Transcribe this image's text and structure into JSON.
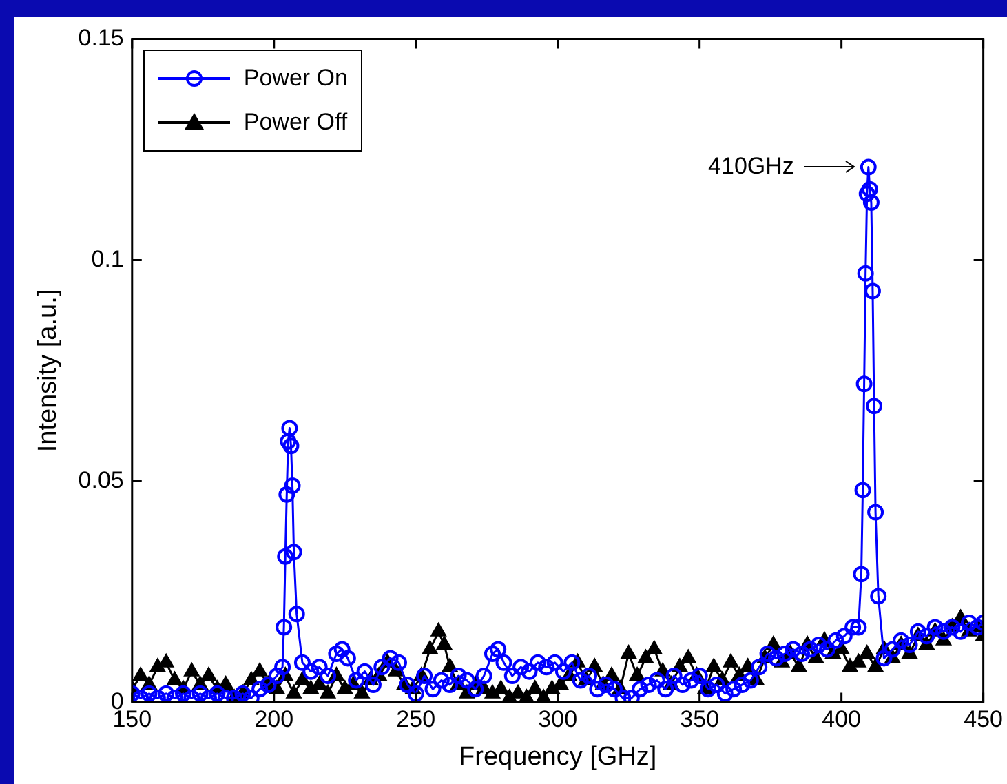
{
  "chart_data": {
    "type": "line",
    "xlabel": "Frequency [GHz]",
    "ylabel": "Intensity [a.u.]",
    "xlim": [
      150,
      450
    ],
    "xticks": [
      150,
      200,
      250,
      300,
      350,
      400,
      450
    ],
    "ylim": [
      0,
      0.15
    ],
    "yticks": [
      0,
      0.05,
      {
        "value": 0.1,
        "label": "0.1"
      },
      0.15
    ],
    "grid": false,
    "legend": "top left",
    "annotations": [
      "410GHz"
    ],
    "series": [
      {
        "name": "Power On",
        "color": "#0000ff",
        "marker": "circle",
        "x": [
          150,
          153,
          156,
          159,
          162,
          165,
          168,
          171,
          174,
          177,
          180,
          183,
          186,
          189,
          192,
          195,
          198,
          201,
          203,
          203.5,
          204,
          204.5,
          205,
          205.5,
          206,
          206.5,
          207,
          208,
          210,
          213,
          216,
          219,
          222,
          224,
          226,
          229,
          232,
          235,
          238,
          241,
          244,
          247,
          250,
          253,
          256,
          259,
          262,
          265,
          268,
          271,
          274,
          277,
          279,
          281,
          284,
          287,
          290,
          293,
          296,
          299,
          302,
          305,
          308,
          311,
          314,
          317,
          320,
          323,
          326,
          329,
          332,
          335,
          338,
          341,
          344,
          347,
          350,
          353,
          356,
          359,
          362,
          365,
          368,
          371,
          374,
          377,
          380,
          383,
          386,
          389,
          392,
          395,
          398,
          401,
          404,
          406,
          407,
          407.5,
          408,
          408.5,
          409,
          409.5,
          410,
          410.5,
          411,
          411.5,
          412,
          413,
          415,
          418,
          421,
          424,
          427,
          430,
          433,
          436,
          439,
          442,
          445,
          448,
          450
        ],
        "values": [
          0.002,
          0.001,
          0.002,
          0.001,
          0.002,
          0.001,
          0.002,
          0.001,
          0.002,
          0.001,
          0.002,
          0.001,
          0.001,
          0.002,
          0.001,
          0.003,
          0.004,
          0.006,
          0.008,
          0.017,
          0.033,
          0.047,
          0.059,
          0.062,
          0.058,
          0.049,
          0.034,
          0.02,
          0.009,
          0.007,
          0.008,
          0.006,
          0.011,
          0.012,
          0.01,
          0.005,
          0.007,
          0.004,
          0.008,
          0.01,
          0.009,
          0.004,
          0.002,
          0.006,
          0.003,
          0.005,
          0.004,
          0.006,
          0.005,
          0.003,
          0.006,
          0.011,
          0.012,
          0.009,
          0.006,
          0.008,
          0.007,
          0.009,
          0.008,
          0.009,
          0.007,
          0.009,
          0.005,
          0.006,
          0.003,
          0.004,
          0.003,
          0.001,
          0.001,
          0.003,
          0.004,
          0.005,
          0.003,
          0.006,
          0.004,
          0.005,
          0.006,
          0.003,
          0.004,
          0.002,
          0.003,
          0.004,
          0.005,
          0.008,
          0.011,
          0.01,
          0.011,
          0.012,
          0.011,
          0.012,
          0.013,
          0.012,
          0.014,
          0.015,
          0.017,
          0.017,
          0.029,
          0.048,
          0.072,
          0.097,
          0.115,
          0.121,
          0.116,
          0.113,
          0.093,
          0.067,
          0.043,
          0.024,
          0.01,
          0.012,
          0.014,
          0.013,
          0.016,
          0.015,
          0.017,
          0.016,
          0.017,
          0.016,
          0.018,
          0.017,
          0.018
        ]
      },
      {
        "name": "Power Off",
        "color": "#000000",
        "marker": "triangle",
        "x": [
          150,
          153,
          156,
          159,
          162,
          165,
          168,
          171,
          174,
          177,
          180,
          183,
          186,
          189,
          192,
          195,
          198,
          201,
          204,
          207,
          210,
          213,
          216,
          219,
          222,
          225,
          228,
          231,
          234,
          237,
          240,
          243,
          246,
          249,
          252,
          255,
          258,
          260,
          262,
          265,
          268,
          271,
          274,
          277,
          280,
          283,
          286,
          289,
          292,
          295,
          298,
          301,
          304,
          307,
          310,
          313,
          316,
          319,
          322,
          325,
          328,
          331,
          334,
          337,
          340,
          343,
          346,
          349,
          352,
          355,
          358,
          361,
          364,
          367,
          370,
          373,
          376,
          379,
          382,
          385,
          388,
          391,
          394,
          397,
          400,
          403,
          406,
          409,
          412,
          415,
          418,
          421,
          424,
          427,
          430,
          433,
          436,
          439,
          442,
          445,
          448,
          450
        ],
        "values": [
          0.003,
          0.006,
          0.004,
          0.008,
          0.009,
          0.005,
          0.003,
          0.007,
          0.004,
          0.006,
          0.003,
          0.004,
          0.001,
          0.002,
          0.005,
          0.007,
          0.004,
          0.003,
          0.006,
          0.002,
          0.005,
          0.003,
          0.004,
          0.002,
          0.006,
          0.003,
          0.004,
          0.002,
          0.005,
          0.006,
          0.009,
          0.007,
          0.004,
          0.003,
          0.006,
          0.012,
          0.016,
          0.013,
          0.008,
          0.004,
          0.002,
          0.004,
          0.003,
          0.002,
          0.003,
          0.001,
          0.002,
          0.001,
          0.003,
          0.001,
          0.003,
          0.004,
          0.006,
          0.009,
          0.005,
          0.008,
          0.004,
          0.006,
          0.003,
          0.011,
          0.006,
          0.01,
          0.012,
          0.007,
          0.004,
          0.008,
          0.01,
          0.006,
          0.003,
          0.008,
          0.005,
          0.009,
          0.006,
          0.008,
          0.005,
          0.01,
          0.013,
          0.009,
          0.011,
          0.008,
          0.013,
          0.01,
          0.014,
          0.011,
          0.012,
          0.008,
          0.009,
          0.011,
          0.008,
          0.012,
          0.01,
          0.013,
          0.011,
          0.015,
          0.013,
          0.016,
          0.014,
          0.017,
          0.019,
          0.016,
          0.017,
          0.015
        ]
      }
    ]
  }
}
